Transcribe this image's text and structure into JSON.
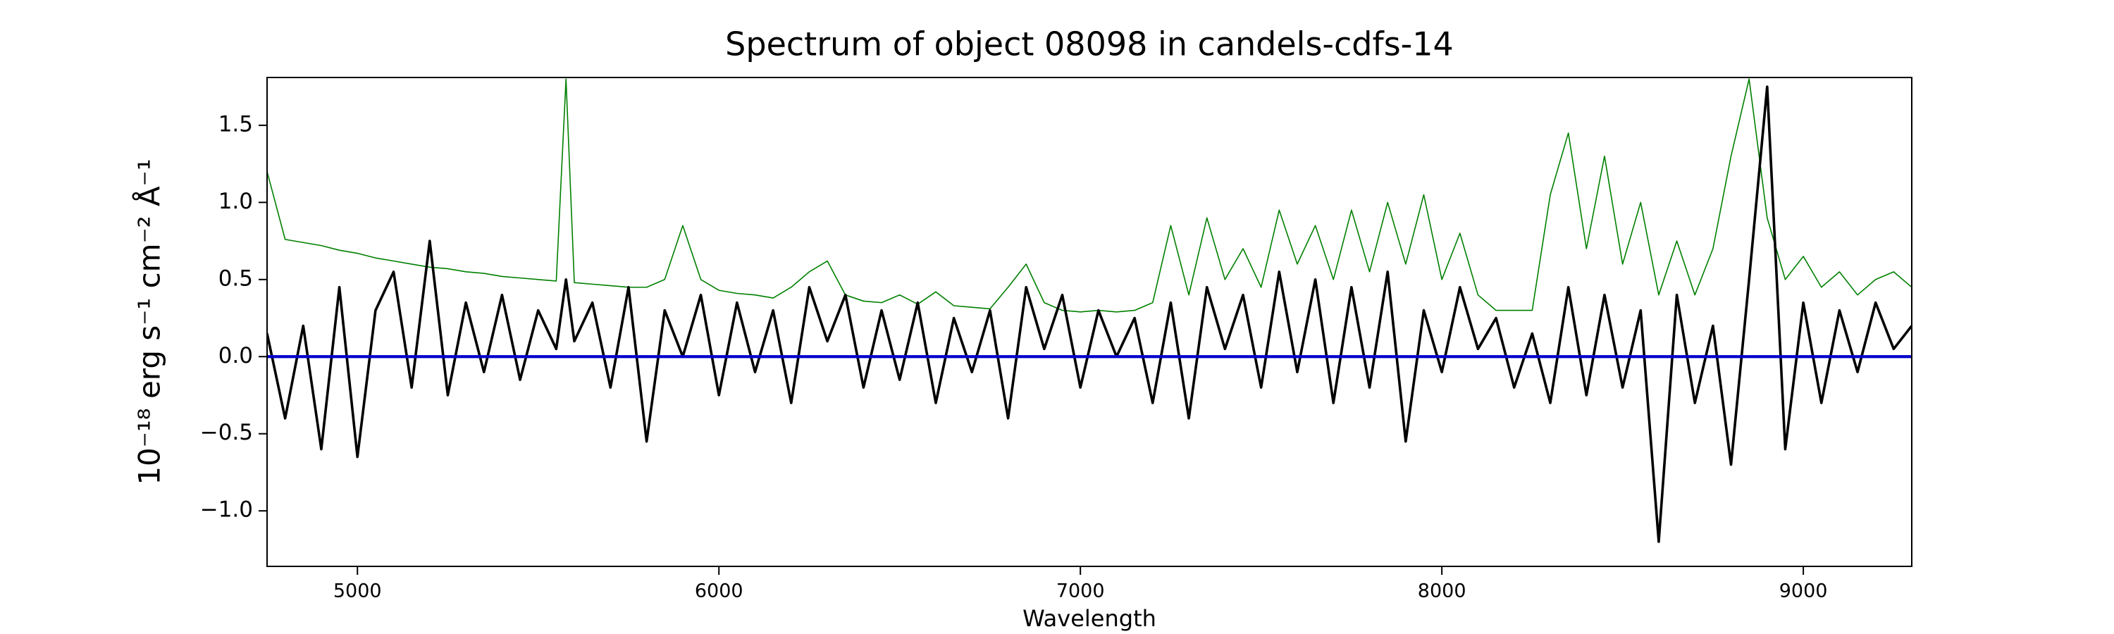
{
  "chart_data": {
    "type": "line",
    "title": "Spectrum of object 08098 in candels-cdfs-14",
    "xlabel": "Wavelength",
    "ylabel": "10⁻¹⁸ erg s⁻¹ cm⁻² Å⁻¹",
    "x": [
      4750,
      4800,
      4850,
      4900,
      4950,
      5000,
      5050,
      5100,
      5150,
      5200,
      5250,
      5300,
      5350,
      5400,
      5450,
      5500,
      5550,
      5577,
      5600,
      5650,
      5700,
      5750,
      5800,
      5850,
      5900,
      5950,
      6000,
      6050,
      6100,
      6150,
      6200,
      6250,
      6300,
      6350,
      6400,
      6450,
      6500,
      6550,
      6600,
      6650,
      6700,
      6750,
      6800,
      6850,
      6900,
      6950,
      7000,
      7050,
      7100,
      7150,
      7200,
      7250,
      7300,
      7350,
      7400,
      7450,
      7500,
      7550,
      7600,
      7650,
      7700,
      7750,
      7800,
      7850,
      7900,
      7950,
      8000,
      8050,
      8100,
      8150,
      8200,
      8250,
      8300,
      8350,
      8400,
      8450,
      8500,
      8550,
      8600,
      8650,
      8700,
      8750,
      8800,
      8850,
      8900,
      8950,
      9000,
      9050,
      9100,
      9150,
      9200,
      9250,
      9300
    ],
    "series": [
      {
        "color": "#008000",
        "width": 1.6,
        "values": [
          1.2,
          0.76,
          0.74,
          0.72,
          0.69,
          0.67,
          0.64,
          0.62,
          0.6,
          0.58,
          0.57,
          0.55,
          0.54,
          0.52,
          0.51,
          0.5,
          0.49,
          1.8,
          0.48,
          0.47,
          0.46,
          0.45,
          0.45,
          0.5,
          0.85,
          0.5,
          0.43,
          0.41,
          0.4,
          0.38,
          0.45,
          0.55,
          0.62,
          0.4,
          0.36,
          0.35,
          0.4,
          0.34,
          0.42,
          0.33,
          0.32,
          0.31,
          0.45,
          0.6,
          0.35,
          0.3,
          0.29,
          0.3,
          0.29,
          0.3,
          0.35,
          0.85,
          0.4,
          0.9,
          0.5,
          0.7,
          0.45,
          0.95,
          0.6,
          0.85,
          0.5,
          0.95,
          0.55,
          1.0,
          0.6,
          1.05,
          0.5,
          0.8,
          0.4,
          0.3,
          0.3,
          0.3,
          1.05,
          1.45,
          0.7,
          1.3,
          0.6,
          1.0,
          0.4,
          0.75,
          0.4,
          0.7,
          1.3,
          1.8,
          0.9,
          0.5,
          0.65,
          0.45,
          0.55,
          0.4,
          0.5,
          0.55,
          0.45
        ]
      },
      {
        "color": "#000000",
        "width": 3.6,
        "values": [
          0.15,
          -0.4,
          0.2,
          -0.6,
          0.45,
          -0.65,
          0.3,
          0.55,
          -0.2,
          0.75,
          -0.25,
          0.35,
          -0.1,
          0.4,
          -0.15,
          0.3,
          0.05,
          0.5,
          0.1,
          0.35,
          -0.2,
          0.45,
          -0.55,
          0.3,
          0.0,
          0.4,
          -0.25,
          0.35,
          -0.1,
          0.3,
          -0.3,
          0.45,
          0.1,
          0.4,
          -0.2,
          0.3,
          -0.15,
          0.35,
          -0.3,
          0.25,
          -0.1,
          0.3,
          -0.4,
          0.45,
          0.05,
          0.4,
          -0.2,
          0.3,
          0.0,
          0.25,
          -0.3,
          0.35,
          -0.4,
          0.45,
          0.05,
          0.4,
          -0.2,
          0.55,
          -0.1,
          0.5,
          -0.3,
          0.45,
          -0.2,
          0.55,
          -0.55,
          0.3,
          -0.1,
          0.45,
          0.05,
          0.25,
          -0.2,
          0.15,
          -0.3,
          0.45,
          -0.25,
          0.4,
          -0.2,
          0.3,
          -1.2,
          0.4,
          -0.3,
          0.2,
          -0.7,
          0.5,
          1.75,
          -0.6,
          0.35,
          -0.3,
          0.3,
          -0.1,
          0.35,
          0.05,
          0.2
        ]
      },
      {
        "color": "#0000cc",
        "width": 4.2,
        "x": [
          4750,
          9300
        ],
        "values": [
          0,
          0
        ]
      }
    ],
    "xlim": [
      4750,
      9300
    ],
    "ylim": [
      -1.36,
      1.81
    ],
    "xticks": [
      5000,
      6000,
      7000,
      8000,
      9000
    ],
    "yticks": [
      {
        "value": -1,
        "label": "−1.0"
      },
      {
        "value": -0.5,
        "label": "−0.5"
      },
      {
        "value": 0,
        "label": "0.0"
      },
      0.5,
      {
        "value": 1,
        "label": "1.0"
      },
      1.5
    ],
    "grid": false
  }
}
